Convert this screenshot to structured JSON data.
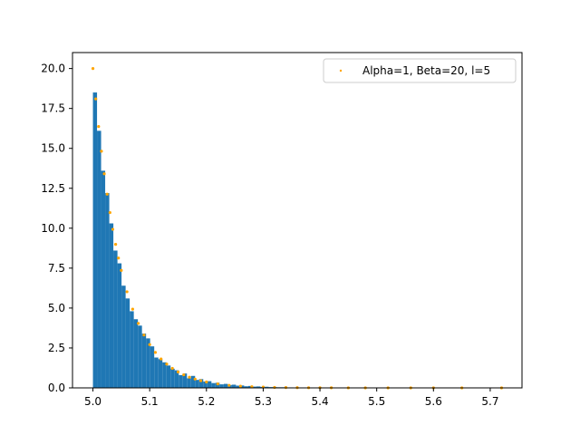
{
  "chart_data": {
    "type": "bar",
    "title": "",
    "xlabel": "",
    "ylabel": "",
    "xlim": [
      4.964,
      5.756
    ],
    "ylim": [
      0,
      21
    ],
    "grid": false,
    "legend_position": "top-right",
    "x_ticks": [
      {
        "value": 5.0,
        "label": "5.0"
      },
      {
        "value": 5.1,
        "label": "5.1"
      },
      {
        "value": 5.2,
        "label": "5.2"
      },
      {
        "value": 5.3,
        "label": "5.3"
      },
      {
        "value": 5.4,
        "label": "5.4"
      },
      {
        "value": 5.5,
        "label": "5.5"
      },
      {
        "value": 5.6,
        "label": "5.6"
      },
      {
        "value": 5.7,
        "label": "5.7"
      }
    ],
    "y_ticks": [
      {
        "value": 0.0,
        "label": "0.0"
      },
      {
        "value": 2.5,
        "label": "2.5"
      },
      {
        "value": 5.0,
        "label": "5.0"
      },
      {
        "value": 7.5,
        "label": "7.5"
      },
      {
        "value": 10.0,
        "label": "10.0"
      },
      {
        "value": 12.5,
        "label": "12.5"
      },
      {
        "value": 15.0,
        "label": "15.0"
      },
      {
        "value": 17.5,
        "label": "17.5"
      },
      {
        "value": 20.0,
        "label": "20.0"
      }
    ],
    "histogram": {
      "bin_start": 5.0,
      "bin_width": 0.0072,
      "color": "#1f77b4",
      "values": [
        18.5,
        16.1,
        13.6,
        12.2,
        10.3,
        8.6,
        7.8,
        6.4,
        5.6,
        4.8,
        4.3,
        3.9,
        3.4,
        3.1,
        2.6,
        1.9,
        1.8,
        1.6,
        1.4,
        1.2,
        1.1,
        0.8,
        0.9,
        0.6,
        0.75,
        0.5,
        0.55,
        0.4,
        0.42,
        0.3,
        0.32,
        0.22,
        0.25,
        0.18,
        0.2,
        0.14,
        0.15,
        0.1,
        0.12,
        0.08,
        0.09,
        0.06,
        0.07,
        0.05,
        0.05,
        0.04,
        0.04,
        0.03,
        0.03,
        0.02,
        0.02,
        0.02,
        0.015,
        0.015,
        0.01,
        0.01,
        0.01,
        0.008,
        0.008,
        0.006,
        0.006,
        0.005,
        0.005,
        0.004,
        0.004,
        0.003,
        0.003,
        0.003,
        0.002,
        0.002,
        0.002,
        0.002,
        0.001,
        0.001,
        0.001,
        0.001,
        0.001,
        0.001,
        0.001,
        0.001,
        0.001,
        0.001,
        0.001,
        0.001,
        0.001,
        0.001,
        0.001,
        0.001,
        0.001,
        0.001,
        0.001,
        0.001,
        0.001,
        0.001,
        0.001,
        0.001,
        0.001,
        0.001,
        0.001,
        0.001
      ]
    },
    "series": [
      {
        "name": "Alpha=1, Beta=20, l=5",
        "type": "scatter",
        "color": "#ffa500",
        "x": [
          5.0,
          5.005,
          5.01,
          5.015,
          5.02,
          5.025,
          5.03,
          5.035,
          5.04,
          5.045,
          5.05,
          5.06,
          5.07,
          5.08,
          5.09,
          5.1,
          5.11,
          5.12,
          5.13,
          5.14,
          5.15,
          5.16,
          5.17,
          5.18,
          5.19,
          5.2,
          5.22,
          5.24,
          5.26,
          5.28,
          5.3,
          5.32,
          5.34,
          5.36,
          5.38,
          5.4,
          5.42,
          5.45,
          5.48,
          5.52,
          5.56,
          5.6,
          5.65,
          5.72
        ],
        "y": [
          20.0,
          18.1,
          16.37,
          14.82,
          13.41,
          12.13,
          10.98,
          9.93,
          8.99,
          8.13,
          7.36,
          6.02,
          4.93,
          4.04,
          3.31,
          2.71,
          2.22,
          1.81,
          1.49,
          1.22,
          1.0,
          0.82,
          0.67,
          0.55,
          0.45,
          0.37,
          0.25,
          0.16,
          0.11,
          0.07,
          0.05,
          0.03,
          0.02,
          0.015,
          0.01,
          0.007,
          0.005,
          0.002,
          0.001,
          0.001,
          0.0,
          0.0,
          0.0,
          0.0
        ]
      }
    ]
  }
}
